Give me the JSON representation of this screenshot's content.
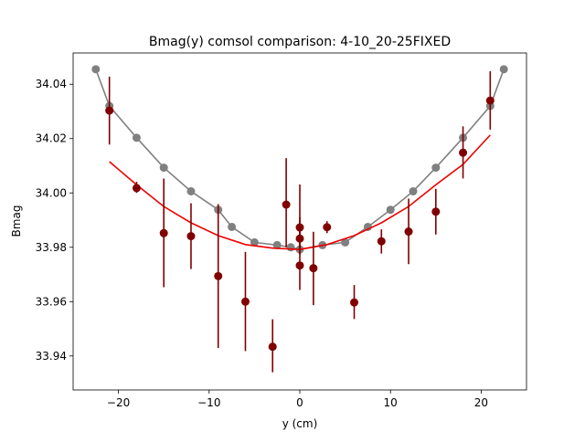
{
  "chart_data": {
    "type": "scatter",
    "title": "Bmag(y) comsol comparison: 4-10_20-25FIXED",
    "xlabel": "y (cm)",
    "ylabel": "Bmag",
    "xlim": [
      -25,
      25
    ],
    "ylim": [
      33.9275,
      34.0515
    ],
    "x_ticks": [
      -20,
      -10,
      0,
      10,
      20
    ],
    "x_tick_labels": [
      "−20",
      "−10",
      "0",
      "10",
      "20"
    ],
    "y_ticks": [
      33.94,
      33.96,
      33.98,
      34.0,
      34.02,
      34.04
    ],
    "y_tick_labels": [
      "33.94",
      "33.96",
      "33.98",
      "34.00",
      "34.02",
      "34.04"
    ],
    "grid": false,
    "series": [
      {
        "type": "line-marker",
        "color": "#808080",
        "x": [
          -22.5,
          -21.0,
          -18.0,
          -15.0,
          -12.0,
          -9.0,
          -7.5,
          -5.0,
          -2.5,
          -1.0,
          0.0,
          2.5,
          5.0,
          7.5,
          10.0,
          12.5,
          15.0,
          18.0,
          21.0,
          22.5
        ],
        "y": [
          34.0455,
          34.032,
          34.0203,
          34.0093,
          34.0006,
          33.9938,
          33.9875,
          33.9818,
          33.9808,
          33.98,
          33.9792,
          33.9808,
          33.9818,
          33.9875,
          33.9938,
          34.0006,
          34.0093,
          34.0203,
          34.032,
          34.0455
        ]
      },
      {
        "type": "line",
        "color": "#ee0000",
        "x": [
          -21,
          -18,
          -15,
          -12,
          -9,
          -6,
          -3,
          0,
          3,
          6,
          9,
          12,
          15,
          18,
          21
        ],
        "y": [
          34.0115,
          34.003,
          33.995,
          33.989,
          33.9843,
          33.981,
          33.9797,
          33.9792,
          33.981,
          33.9843,
          33.989,
          33.995,
          34.003,
          34.0105,
          34.0213
        ]
      },
      {
        "type": "errorbar",
        "color": "#800000",
        "x": [
          -21.0,
          -18.0,
          -15.0,
          -12.0,
          -9.0,
          -6.0,
          -3.0,
          -1.5,
          0.0,
          0.0,
          0.0,
          1.5,
          3.0,
          6.0,
          9.0,
          12.0,
          15.0,
          18.0,
          21.0
        ],
        "y": [
          34.0303,
          34.0018,
          33.9852,
          33.9841,
          33.9694,
          33.96,
          33.9434,
          33.9957,
          33.9873,
          33.9832,
          33.9733,
          33.9723,
          33.9874,
          33.9597,
          33.9822,
          33.9858,
          33.9931,
          34.0148,
          34.034
        ],
        "yerr_low": [
          34.0178,
          34.0,
          33.9653,
          33.972,
          33.9429,
          33.9418,
          33.934,
          33.98,
          33.9643,
          33.9773,
          33.98,
          33.9587,
          33.9852,
          33.9536,
          33.9777,
          33.9738,
          33.9847,
          34.0053,
          34.0233
        ],
        "yerr_high": [
          34.0428,
          34.0041,
          34.0053,
          33.9962,
          33.9959,
          33.9783,
          33.9535,
          34.0128,
          34.0031,
          33.9911,
          33.986,
          33.9857,
          33.9896,
          33.9661,
          33.9866,
          33.9979,
          34.0015,
          34.0245,
          34.0448
        ]
      }
    ]
  }
}
